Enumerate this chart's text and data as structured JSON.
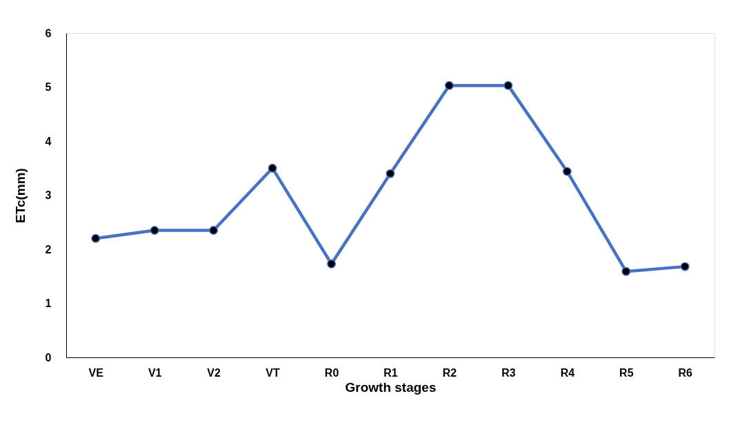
{
  "chart_data": {
    "type": "line",
    "xlabel": "Growth stages",
    "ylabel": "ETc(mm)",
    "categories": [
      "VE",
      "V1",
      "V2",
      "VT",
      "R0",
      "R1",
      "R2",
      "R3",
      "R4",
      "R5",
      "R6"
    ],
    "series": [
      {
        "color": "#4472c4",
        "values": [
          2.2,
          2.35,
          2.35,
          3.5,
          1.73,
          3.4,
          5.03,
          5.03,
          3.44,
          1.59,
          1.68
        ]
      }
    ],
    "ylim": [
      0,
      6
    ],
    "yticks": [
      0,
      1,
      2,
      3,
      4,
      5,
      6
    ],
    "grid": false,
    "marker": "circle",
    "line_style": "solid"
  }
}
